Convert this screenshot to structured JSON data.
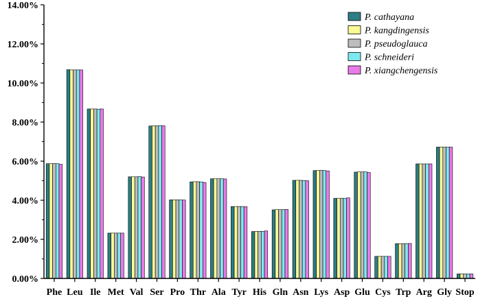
{
  "chart_data": {
    "type": "bar",
    "title": "",
    "xlabel": "",
    "ylabel": "",
    "ylim": [
      0,
      14
    ],
    "y_ticks": [
      "0.00%",
      "2.00%",
      "4.00%",
      "6.00%",
      "8.00%",
      "10.00%",
      "12.00%",
      "14.00%"
    ],
    "y_tick_values": [
      0,
      2,
      4,
      6,
      8,
      10,
      12,
      14
    ],
    "legend_position": "top-right",
    "grid": false,
    "categories": [
      "Phe",
      "Leu",
      "Ile",
      "Met",
      "Val",
      "Ser",
      "Pro",
      "Thr",
      "Ala",
      "Tyr",
      "His",
      "Gln",
      "Asn",
      "Lys",
      "Asp",
      "Glu",
      "Cys",
      "Trp",
      "Arg",
      "Gly",
      "Stop"
    ],
    "series": [
      {
        "name": "P. cathayana",
        "color": "#2d7d84",
        "values": [
          5.87,
          10.68,
          8.67,
          2.32,
          5.2,
          7.8,
          4.02,
          4.94,
          5.1,
          3.68,
          2.4,
          3.51,
          5.02,
          5.52,
          4.1,
          5.44,
          1.13,
          1.78,
          5.86,
          6.72,
          0.23
        ]
      },
      {
        "name": "P. kangdingensis",
        "color": "#fafa96",
        "values": [
          5.87,
          10.67,
          8.67,
          2.32,
          5.2,
          7.81,
          4.02,
          4.95,
          5.1,
          3.68,
          2.41,
          3.52,
          5.02,
          5.53,
          4.1,
          5.45,
          1.13,
          1.78,
          5.86,
          6.72,
          0.23
        ]
      },
      {
        "name": "P. pseudoglauca",
        "color": "#bdbdbd",
        "values": [
          5.88,
          10.67,
          8.67,
          2.32,
          5.2,
          7.81,
          4.02,
          4.95,
          5.1,
          3.68,
          2.41,
          3.52,
          5.02,
          5.53,
          4.1,
          5.45,
          1.13,
          1.78,
          5.86,
          6.72,
          0.23
        ]
      },
      {
        "name": "P. schneideri",
        "color": "#7de8f0",
        "values": [
          5.87,
          10.67,
          8.66,
          2.32,
          5.21,
          7.82,
          4.02,
          4.94,
          5.1,
          3.68,
          2.41,
          3.52,
          5.01,
          5.52,
          4.1,
          5.45,
          1.13,
          1.78,
          5.86,
          6.72,
          0.23
        ]
      },
      {
        "name": "P. xiangchengensis",
        "color": "#e97be8",
        "values": [
          5.84,
          10.67,
          8.67,
          2.32,
          5.19,
          7.81,
          4.01,
          4.91,
          5.09,
          3.67,
          2.43,
          3.53,
          5.0,
          5.5,
          4.12,
          5.42,
          1.13,
          1.79,
          5.86,
          6.72,
          0.23
        ]
      }
    ]
  }
}
